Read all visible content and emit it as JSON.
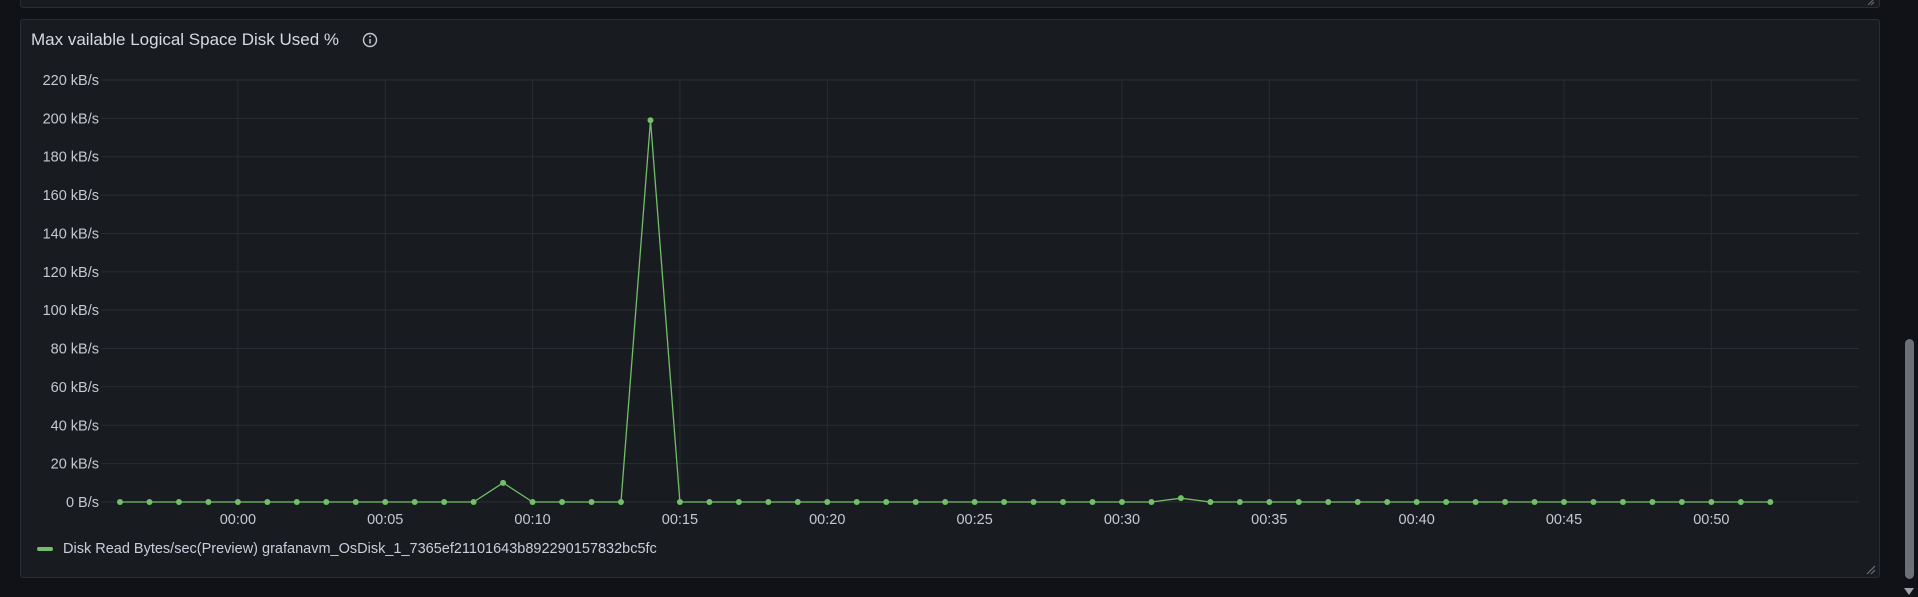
{
  "panel": {
    "title": "Max vailable Logical Space Disk Used %",
    "info_icon": "info-circle-icon"
  },
  "colors": {
    "series": "#73bf69",
    "background": "#111217",
    "panel": "#181b1f",
    "grid": "#2a2d33"
  },
  "chart_data": {
    "type": "line",
    "y_unit": "kB/s",
    "ylim": [
      0,
      220
    ],
    "y_ticks": [
      0,
      20,
      40,
      60,
      80,
      100,
      120,
      140,
      160,
      180,
      200,
      220
    ],
    "y_tick_labels": [
      "0 B/s",
      "20 kB/s",
      "40 kB/s",
      "60 kB/s",
      "80 kB/s",
      "100 kB/s",
      "120 kB/s",
      "140 kB/s",
      "160 kB/s",
      "180 kB/s",
      "200 kB/s",
      "220 kB/s"
    ],
    "x_tick_labels": [
      "00:00",
      "00:05",
      "00:10",
      "00:15",
      "00:20",
      "00:25",
      "00:30",
      "00:35",
      "00:40",
      "00:45",
      "00:50"
    ],
    "x_tick_minutes": [
      0,
      5,
      10,
      15,
      20,
      25,
      30,
      35,
      40,
      45,
      50
    ],
    "xlim_minutes": [
      -4.0,
      53.5
    ],
    "grid": true,
    "legend_position": "bottom-left",
    "series": [
      {
        "name": "Disk Read Bytes/sec(Preview) grafanavm_OsDisk_1_7365ef21101643b892290157832bc5fc",
        "x_minutes": [
          -4,
          -3,
          -2,
          -1,
          0,
          1,
          2,
          3,
          4,
          5,
          6,
          7,
          8,
          9,
          10,
          11,
          12,
          13,
          14,
          15,
          16,
          17,
          18,
          19,
          20,
          21,
          22,
          23,
          24,
          25,
          26,
          27,
          28,
          29,
          30,
          31,
          32,
          33,
          34,
          35,
          36,
          37,
          38,
          39,
          40,
          41,
          42,
          43,
          44,
          45,
          46,
          47,
          48,
          49,
          50,
          51,
          52
        ],
        "values": [
          0,
          0,
          0,
          0,
          0,
          0,
          0,
          0,
          0,
          0,
          0,
          0,
          0,
          10,
          0,
          0,
          0,
          0,
          199,
          0,
          0,
          0,
          0,
          0,
          0,
          0,
          0,
          0,
          0,
          0,
          0,
          0,
          0,
          0,
          0,
          0,
          2,
          0,
          0,
          0,
          0,
          0,
          0,
          0,
          0,
          0,
          0,
          0,
          0,
          0,
          0,
          0,
          0,
          0,
          0,
          0,
          0
        ]
      }
    ]
  }
}
